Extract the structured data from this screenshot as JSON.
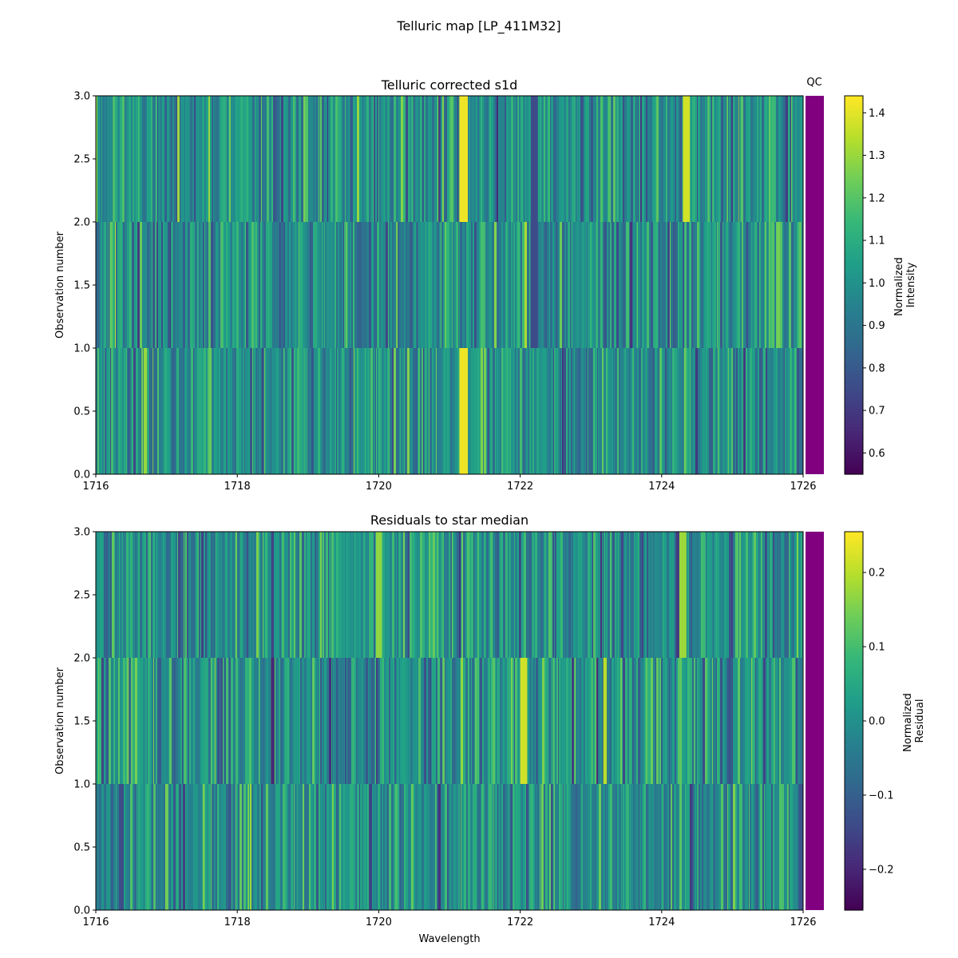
{
  "figure": {
    "title": "Telluric map [LP_411M32]"
  },
  "chart_data": [
    {
      "type": "heatmap",
      "title": "Telluric corrected s1d",
      "xlabel": "",
      "ylabel": "Observation number",
      "xlim": [
        1716,
        1726
      ],
      "ylim": [
        0.0,
        3.0
      ],
      "xticks": [
        "1716",
        "1718",
        "1720",
        "1722",
        "1724",
        "1726"
      ],
      "yticks": [
        "0.0",
        "0.5",
        "1.0",
        "1.5",
        "2.0",
        "2.5",
        "3.0"
      ],
      "rows": [
        "obs 0",
        "obs 1",
        "obs 2"
      ],
      "colormap": "viridis",
      "value_range": [
        0.55,
        1.44
      ],
      "colorbar": {
        "label_line1": "Normalized",
        "label_line2": "Intensity",
        "ticks": [
          "0.6",
          "0.7",
          "0.8",
          "0.9",
          "1.0",
          "1.1",
          "1.2",
          "1.3",
          "1.4"
        ],
        "range": [
          0.55,
          1.44
        ]
      },
      "qc": {
        "label": "QC",
        "color": "#800080"
      },
      "features": [
        {
          "x": 1721.2,
          "width": 0.12,
          "value": 1.42,
          "rows": [
            0,
            2
          ]
        },
        {
          "x": 1724.35,
          "width": 0.1,
          "value": 1.38,
          "rows": [
            2
          ]
        },
        {
          "x": 1722.2,
          "width": 0.1,
          "value": 0.75,
          "rows": [
            1,
            2
          ]
        },
        {
          "x": 1716.7,
          "width": 0.05,
          "value": 1.3,
          "rows": [
            0
          ]
        }
      ]
    },
    {
      "type": "heatmap",
      "title": "Residuals to star median",
      "xlabel": "Wavelength",
      "ylabel": "Observation number",
      "xlim": [
        1716,
        1726
      ],
      "ylim": [
        0.0,
        3.0
      ],
      "xticks": [
        "1716",
        "1718",
        "1720",
        "1722",
        "1724",
        "1726"
      ],
      "yticks": [
        "0.0",
        "0.5",
        "1.0",
        "1.5",
        "2.0",
        "2.5",
        "3.0"
      ],
      "rows": [
        "obs 0",
        "obs 1",
        "obs 2"
      ],
      "colormap": "viridis",
      "value_range": [
        -0.255,
        0.255
      ],
      "colorbar": {
        "label_line1": "Normalized",
        "label_line2": "Residual",
        "ticks": [
          "−0.2",
          "−0.1",
          "0.0",
          "0.1",
          "0.2"
        ],
        "range": [
          -0.255,
          0.255
        ]
      },
      "qc": {
        "label": "",
        "color": "#800080"
      },
      "features": [
        {
          "x": 1722.05,
          "width": 0.1,
          "value": 0.22,
          "rows": [
            1
          ]
        },
        {
          "x": 1723.2,
          "width": 0.05,
          "value": 0.2,
          "rows": [
            1
          ]
        },
        {
          "x": 1724.3,
          "width": 0.1,
          "value": 0.18,
          "rows": [
            2
          ]
        },
        {
          "x": 1720.0,
          "width": 0.08,
          "value": 0.17,
          "rows": [
            2
          ]
        },
        {
          "x": 1718.5,
          "width": 0.05,
          "value": -0.2,
          "rows": [
            1
          ]
        }
      ]
    }
  ]
}
